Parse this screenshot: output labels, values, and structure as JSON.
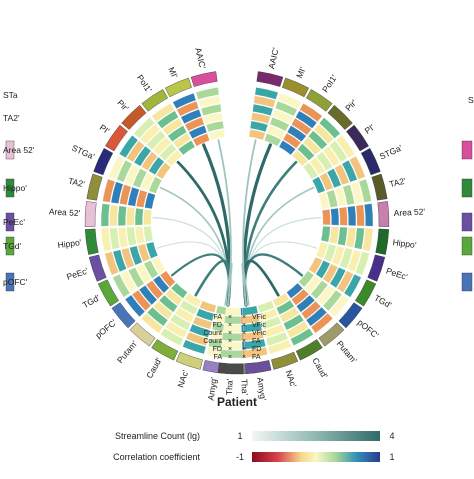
{
  "title": "Patient",
  "legend": {
    "streamline_label": "Streamline Count (lg)",
    "streamline_min": "1",
    "streamline_max": "4",
    "correlation_label": "Correlation coefficient",
    "correlation_min": "-1",
    "correlation_max": "1"
  },
  "left_regions": [
    {
      "label": "AAIC'",
      "color": "#d94f9e"
    },
    {
      "label": "MI'",
      "color": "#b9c64a"
    },
    {
      "label": "PoI1'",
      "color": "#a0b53c"
    },
    {
      "label": "Pir'",
      "color": "#c45a2a"
    },
    {
      "label": "PI'",
      "color": "#d9573a"
    },
    {
      "label": "STGa'",
      "color": "#2a2a7a"
    },
    {
      "label": "TA2'",
      "color": "#8f8f3a"
    },
    {
      "label": "Area 52'",
      "color": "#e8c1d6"
    },
    {
      "label": "Hippo'",
      "color": "#2f8a3a"
    },
    {
      "label": "PeEc'",
      "color": "#6a4fa3"
    },
    {
      "label": "TGd'",
      "color": "#5aa83c"
    },
    {
      "label": "pOFC'",
      "color": "#4a74b8"
    },
    {
      "label": "Putam'",
      "color": "#d9cf9a"
    },
    {
      "label": "Caud'",
      "color": "#7fae3a"
    },
    {
      "label": "NAc'",
      "color": "#cfcf7a"
    },
    {
      "label": "Amyg'",
      "color": "#9b7fc4"
    },
    {
      "label": "Tha'",
      "color": "#8a8a8a"
    }
  ],
  "right_regions": [
    {
      "label": "AAIC'",
      "color": "#7a2a6a"
    },
    {
      "label": "MI'",
      "color": "#9a8f2a"
    },
    {
      "label": "PoI1'",
      "color": "#8fa03a"
    },
    {
      "label": "Pir'",
      "color": "#6a6a2a"
    },
    {
      "label": "PI'",
      "color": "#3a2a5a"
    },
    {
      "label": "STGa'",
      "color": "#2a2a6a"
    },
    {
      "label": "TA2'",
      "color": "#5a5a2a"
    },
    {
      "label": "Area 52'",
      "color": "#c77fae"
    },
    {
      "label": "Hippo'",
      "color": "#1f6a2a"
    },
    {
      "label": "PeEc'",
      "color": "#4a2f8a"
    },
    {
      "label": "TGd'",
      "color": "#3a8a2a"
    },
    {
      "label": "pOFC'",
      "color": "#2a54a0"
    },
    {
      "label": "Putam'",
      "color": "#9f9a6a"
    },
    {
      "label": "Caud'",
      "color": "#4f7f2a"
    },
    {
      "label": "NAc'",
      "color": "#8f8f3a"
    },
    {
      "label": "Amyg'",
      "color": "#6a4f9b"
    },
    {
      "label": "Tha'",
      "color": "#4a4a4a"
    }
  ],
  "left_metrics": [
    "FA",
    "FD",
    "Count",
    "Count",
    "FD",
    "FA"
  ],
  "right_metrics": [
    "VFic",
    "VFic",
    "VFic",
    "FA",
    "FD",
    "FA"
  ],
  "side_left": [
    {
      "label": "STa",
      "color": ""
    },
    {
      "label": "TA2'",
      "color": ""
    },
    {
      "label": "Area 52'",
      "color": "#e8c1d6"
    },
    {
      "label": "Hippo'",
      "color": "#2f8a3a"
    },
    {
      "label": "PeEc'",
      "color": "#6a4fa3"
    },
    {
      "label": "TGd'",
      "color": "#5aa83c"
    },
    {
      "label": "pOFC'",
      "color": "#4a74b8"
    }
  ],
  "side_right": [
    {
      "label": "S",
      "color": ""
    },
    {
      "label": "",
      "color": "#d94f9e"
    },
    {
      "label": "",
      "color": "#2f8a3a"
    },
    {
      "label": "",
      "color": "#6a4fa3"
    },
    {
      "label": "",
      "color": "#5aa83c"
    },
    {
      "label": "",
      "color": "#4a74b8"
    }
  ]
}
